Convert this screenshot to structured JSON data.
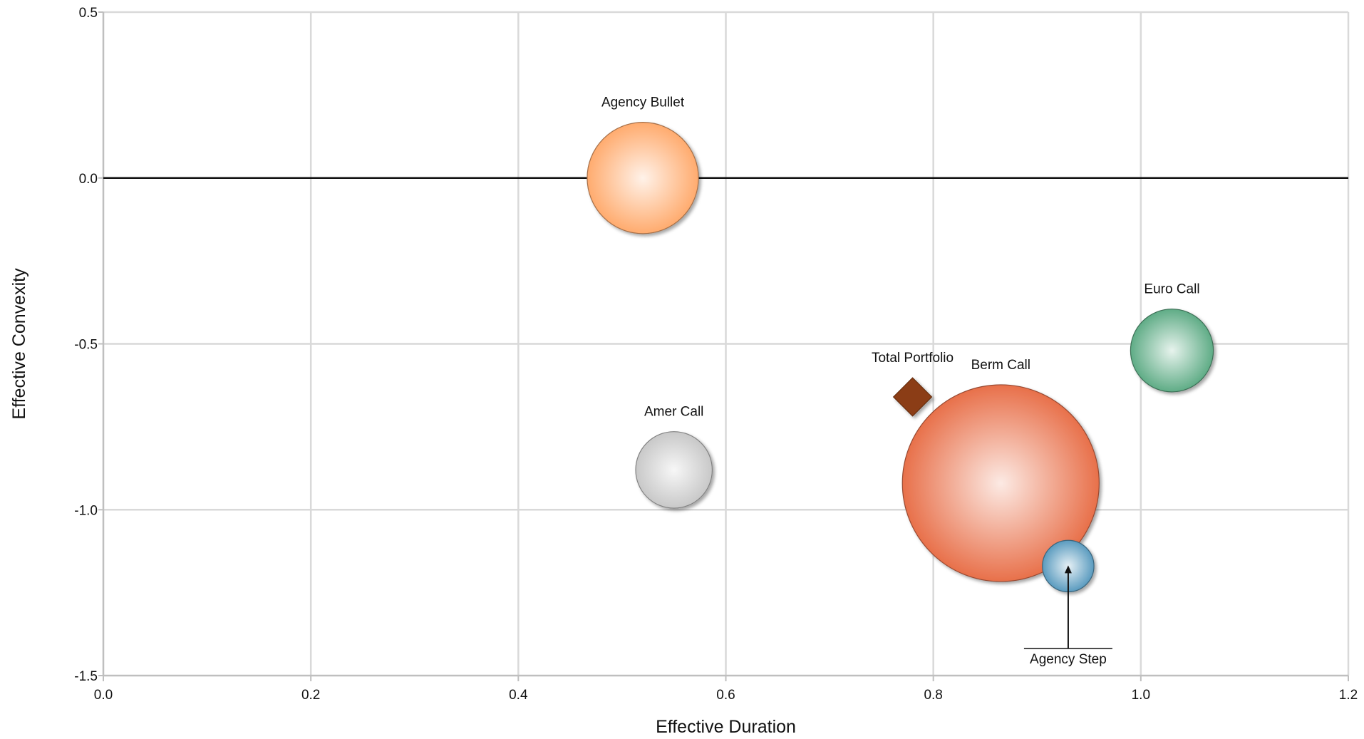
{
  "chart_data": {
    "type": "scatter",
    "subtype": "bubble",
    "title": "",
    "xlabel": "Effective Duration",
    "ylabel": "Effective Convexity",
    "xlim": [
      0.0,
      1.2
    ],
    "ylim": [
      -1.5,
      0.5
    ],
    "x_ticks": [
      "0.0",
      "0.2",
      "0.4",
      "0.6",
      "0.8",
      "1.0",
      "1.2"
    ],
    "y_ticks": [
      "0.5",
      "0.0",
      "-0.5",
      "-1.0",
      "-1.5"
    ],
    "grid": true,
    "zero_line": true,
    "series": [
      {
        "name": "Agency Bullet",
        "x": 0.52,
        "y": 0.0,
        "size": 5.6,
        "color": "#ffab6e",
        "marker": "circle"
      },
      {
        "name": "Amer Call",
        "x": 0.55,
        "y": -0.88,
        "size": 2.65,
        "color": "#c8c8c8",
        "marker": "circle"
      },
      {
        "name": "Berm Call",
        "x": 0.865,
        "y": -0.92,
        "size": 17.5,
        "color": "#e8704a",
        "marker": "circle"
      },
      {
        "name": "Euro Call",
        "x": 1.03,
        "y": -0.52,
        "size": 3.1,
        "color": "#5fac86",
        "marker": "circle"
      },
      {
        "name": "Agency Step",
        "x": 0.93,
        "y": -1.17,
        "size": 1.2,
        "color": "#5a9bbf",
        "marker": "circle",
        "annotated": true
      },
      {
        "name": "Total Portfolio",
        "x": 0.78,
        "y": -0.66,
        "color": "#8b3e12",
        "marker": "diamond"
      }
    ]
  }
}
